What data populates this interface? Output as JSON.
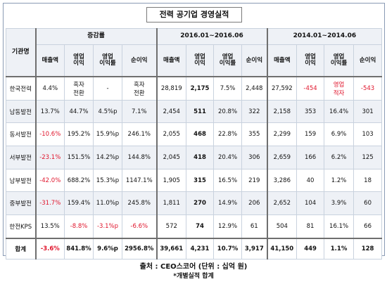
{
  "title": "전력 공기업 경영실적",
  "header": {
    "institution": "기관명",
    "groups": [
      "증감률",
      "2016.01~2016.06",
      "2014.01~2014.06"
    ],
    "columns": [
      "매출액",
      "영업\n이익",
      "영업\n이익률",
      "순이익",
      "매출액",
      "영업\n이익",
      "영업\n이익률",
      "순이익",
      "매출액",
      "영업\n이익",
      "영업\n이익률",
      "순이익"
    ]
  },
  "rows": [
    {
      "name": "한국전력",
      "cells": [
        "4.4%",
        "흑자\n전환",
        "-",
        "흑자\n전환",
        "28,819",
        "2,175",
        "7.5%",
        "2,448",
        "27,592",
        "-454",
        "영업\n적자",
        "-543"
      ],
      "red": [
        false,
        false,
        false,
        false,
        false,
        false,
        false,
        false,
        false,
        true,
        true,
        true
      ]
    },
    {
      "name": "남동발전",
      "cells": [
        "13.7%",
        "44.7%",
        "4.5%p",
        "7.1%",
        "2,454",
        "511",
        "20.8%",
        "322",
        "2,158",
        "353",
        "16.4%",
        "301"
      ],
      "red": [
        false,
        false,
        false,
        false,
        false,
        false,
        false,
        false,
        false,
        false,
        false,
        false
      ]
    },
    {
      "name": "동서발전",
      "cells": [
        "-10.6%",
        "195.2%",
        "15.9%p",
        "246.1%",
        "2,055",
        "468",
        "22.8%",
        "355",
        "2,299",
        "159",
        "6.9%",
        "103"
      ],
      "red": [
        true,
        false,
        false,
        false,
        false,
        false,
        false,
        false,
        false,
        false,
        false,
        false
      ]
    },
    {
      "name": "서부발전",
      "cells": [
        "-23.1%",
        "151.5%",
        "14.2%p",
        "144.8%",
        "2,045",
        "418",
        "20.4%",
        "306",
        "2,659",
        "166",
        "6.2%",
        "125"
      ],
      "red": [
        true,
        false,
        false,
        false,
        false,
        false,
        false,
        false,
        false,
        false,
        false,
        false
      ]
    },
    {
      "name": "남부발전",
      "cells": [
        "-42.0%",
        "688.2%",
        "15.3%p",
        "1147.1%",
        "1,905",
        "315",
        "16.5%",
        "219",
        "3,286",
        "40",
        "1.2%",
        "18"
      ],
      "red": [
        true,
        false,
        false,
        false,
        false,
        false,
        false,
        false,
        false,
        false,
        false,
        false
      ]
    },
    {
      "name": "중부발전",
      "cells": [
        "-31.7%",
        "159.4%",
        "11.0%p",
        "245.8%",
        "1,811",
        "270",
        "14.9%",
        "206",
        "2,652",
        "104",
        "3.9%",
        "60"
      ],
      "red": [
        true,
        false,
        false,
        false,
        false,
        false,
        false,
        false,
        false,
        false,
        false,
        false
      ]
    },
    {
      "name": "한전KPS",
      "cells": [
        "13.5%",
        "-8.8%",
        "-3.1%p",
        "-6.6%",
        "572",
        "74",
        "12.9%",
        "61",
        "504",
        "81",
        "16.1%",
        "66"
      ],
      "red": [
        false,
        true,
        true,
        true,
        false,
        false,
        false,
        false,
        false,
        false,
        false,
        false
      ]
    }
  ],
  "total": {
    "name": "합계",
    "cells": [
      "-3.6%",
      "841.8%",
      "9.6%p",
      "2956.8%",
      "39,661",
      "4,231",
      "10.7%",
      "3,917",
      "41,150",
      "449",
      "1.1%",
      "128"
    ],
    "red": [
      true,
      false,
      false,
      false,
      false,
      false,
      false,
      false,
      false,
      false,
      false,
      false
    ]
  },
  "source": "출처 : CEO스코어 (단위 : 십억 원)",
  "note": "*개별실적 합계"
}
